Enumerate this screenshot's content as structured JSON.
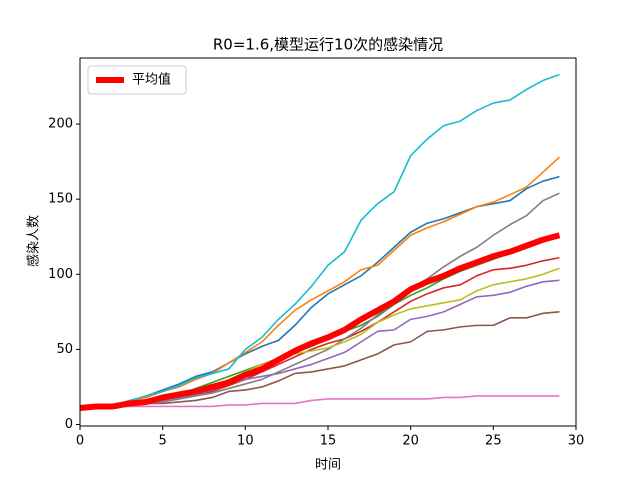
{
  "chart_data": {
    "type": "line",
    "title": "R0=1.6,模型运行10次的感染情况",
    "x_label": "时间",
    "y_label": "感染人数",
    "x": [
      0,
      1,
      2,
      3,
      4,
      5,
      6,
      7,
      8,
      9,
      10,
      11,
      12,
      13,
      14,
      15,
      16,
      17,
      18,
      19,
      20,
      21,
      22,
      23,
      24,
      25,
      26,
      27,
      28,
      29
    ],
    "xlim": [
      0,
      30
    ],
    "xticks": [
      0,
      5,
      10,
      15,
      20,
      25,
      30
    ],
    "ylim": [
      -1,
      244
    ],
    "yticks": [
      0,
      50,
      100,
      150,
      200
    ],
    "legend": "upper left",
    "series": [
      {
        "color": "#1f77b4",
        "values": [
          11,
          12,
          13,
          15,
          19,
          23,
          27,
          32,
          35,
          41,
          47,
          52,
          56,
          66,
          78,
          87,
          93,
          99,
          108,
          118,
          128,
          134,
          137,
          141,
          145,
          147,
          149,
          157,
          162,
          165
        ]
      },
      {
        "color": "#ff7f0e",
        "values": [
          11,
          12,
          13,
          16,
          18,
          22,
          25,
          30,
          34,
          41,
          48,
          55,
          66,
          76,
          83,
          89,
          95,
          103,
          106,
          116,
          126,
          131,
          135,
          140,
          145,
          148,
          153,
          158,
          168,
          178
        ]
      },
      {
        "color": "#2ca02c",
        "values": [
          11,
          12,
          12,
          14,
          16,
          18,
          20,
          24,
          28,
          32,
          36,
          40,
          44,
          48,
          52,
          57,
          62,
          66,
          72,
          80,
          86,
          91,
          97,
          102,
          106,
          110,
          114,
          118,
          122,
          126
        ]
      },
      {
        "color": "#d62728",
        "values": [
          11,
          12,
          12,
          13,
          14,
          16,
          18,
          20,
          22,
          26,
          30,
          35,
          40,
          45,
          50,
          54,
          57,
          62,
          68,
          75,
          82,
          87,
          91,
          93,
          99,
          103,
          104,
          106,
          109,
          111
        ]
      },
      {
        "color": "#9467bd",
        "values": [
          11,
          11,
          12,
          13,
          14,
          16,
          18,
          20,
          23,
          27,
          30,
          32,
          34,
          37,
          40,
          44,
          48,
          55,
          62,
          63,
          70,
          72,
          75,
          80,
          85,
          86,
          88,
          92,
          95,
          96
        ]
      },
      {
        "color": "#8c564b",
        "values": [
          11,
          11,
          12,
          13,
          14,
          14,
          15,
          16,
          18,
          22,
          23,
          25,
          29,
          34,
          35,
          37,
          39,
          43,
          47,
          53,
          55,
          62,
          63,
          65,
          66,
          66,
          71,
          71,
          74,
          75
        ]
      },
      {
        "color": "#e377c2",
        "values": [
          11,
          11,
          12,
          12,
          12,
          12,
          12,
          12,
          12,
          13,
          13,
          14,
          14,
          14,
          16,
          17,
          17,
          17,
          17,
          17,
          17,
          17,
          18,
          18,
          19,
          19,
          19,
          19,
          19,
          19
        ]
      },
      {
        "color": "#7f7f7f",
        "values": [
          11,
          11,
          12,
          13,
          14,
          15,
          17,
          19,
          21,
          24,
          27,
          30,
          35,
          40,
          45,
          50,
          57,
          64,
          73,
          82,
          90,
          97,
          105,
          112,
          118,
          126,
          133,
          139,
          149,
          154
        ]
      },
      {
        "color": "#bcbd22",
        "values": [
          11,
          11,
          12,
          13,
          15,
          17,
          19,
          22,
          25,
          30,
          35,
          40,
          44,
          47,
          49,
          51,
          55,
          60,
          68,
          73,
          77,
          79,
          81,
          83,
          89,
          93,
          95,
          97,
          100,
          104
        ]
      },
      {
        "color": "#17becf",
        "values": [
          11,
          11,
          12,
          16,
          19,
          22,
          26,
          31,
          34,
          37,
          50,
          58,
          70,
          80,
          92,
          106,
          115,
          136,
          147,
          155,
          179,
          190,
          199,
          202,
          209,
          214,
          216,
          223,
          229,
          233
        ]
      },
      {
        "name": "平均值",
        "color": "#ff0000",
        "values": [
          11,
          12,
          12,
          14,
          15,
          18,
          20,
          22,
          25,
          28,
          33,
          37,
          43,
          49,
          54,
          58,
          63,
          70,
          76,
          82,
          90,
          95,
          99,
          104,
          108,
          112,
          115,
          119,
          123,
          126
        ]
      }
    ]
  }
}
